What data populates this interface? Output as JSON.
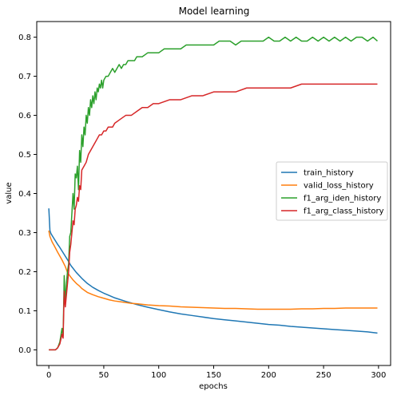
{
  "chart_data": {
    "type": "line",
    "title": "Model learning",
    "xlabel": "epochs",
    "ylabel": "value",
    "xlim": [
      -11,
      311
    ],
    "ylim": [
      -0.04,
      0.84
    ],
    "xticks": [
      0,
      50,
      100,
      150,
      200,
      250,
      300
    ],
    "yticks": [
      0.0,
      0.1,
      0.2,
      0.3,
      0.4,
      0.5,
      0.6,
      0.7,
      0.8
    ],
    "xtick_labels": [
      "0",
      "50",
      "100",
      "150",
      "200",
      "250",
      "300"
    ],
    "ytick_labels": [
      "0.0",
      "0.1",
      "0.2",
      "0.3",
      "0.4",
      "0.5",
      "0.6",
      "0.7",
      "0.8"
    ],
    "grid": false,
    "legend_position": "center-right",
    "series": [
      {
        "name": "train_history",
        "color": "#1f77b4",
        "x": [
          0,
          1,
          2,
          4,
          6,
          8,
          10,
          12,
          14,
          16,
          18,
          20,
          25,
          30,
          35,
          40,
          45,
          50,
          55,
          60,
          70,
          80,
          90,
          100,
          110,
          120,
          130,
          140,
          150,
          160,
          170,
          180,
          190,
          200,
          210,
          220,
          230,
          240,
          250,
          260,
          270,
          280,
          290,
          299
        ],
        "y": [
          0.362,
          0.305,
          0.297,
          0.288,
          0.279,
          0.27,
          0.262,
          0.253,
          0.244,
          0.235,
          0.226,
          0.216,
          0.198,
          0.183,
          0.17,
          0.16,
          0.152,
          0.145,
          0.139,
          0.133,
          0.124,
          0.116,
          0.109,
          0.103,
          0.097,
          0.092,
          0.088,
          0.084,
          0.08,
          0.077,
          0.074,
          0.071,
          0.068,
          0.065,
          0.063,
          0.06,
          0.058,
          0.056,
          0.054,
          0.052,
          0.05,
          0.048,
          0.046,
          0.043
        ]
      },
      {
        "name": "valid_loss_history",
        "color": "#ff7f0e",
        "x": [
          0,
          1,
          3,
          5,
          8,
          10,
          12,
          15,
          17,
          20,
          22,
          25,
          28,
          30,
          35,
          40,
          45,
          50,
          55,
          60,
          65,
          70,
          75,
          80,
          90,
          100,
          110,
          120,
          130,
          140,
          150,
          160,
          170,
          180,
          190,
          200,
          210,
          220,
          230,
          240,
          250,
          260,
          270,
          280,
          290,
          299
        ],
        "y": [
          0.305,
          0.29,
          0.276,
          0.266,
          0.25,
          0.24,
          0.23,
          0.213,
          0.198,
          0.186,
          0.179,
          0.17,
          0.163,
          0.157,
          0.147,
          0.141,
          0.136,
          0.132,
          0.128,
          0.125,
          0.123,
          0.121,
          0.119,
          0.118,
          0.115,
          0.113,
          0.112,
          0.11,
          0.109,
          0.108,
          0.107,
          0.106,
          0.106,
          0.105,
          0.104,
          0.104,
          0.104,
          0.104,
          0.105,
          0.105,
          0.106,
          0.106,
          0.107,
          0.107,
          0.107,
          0.107
        ]
      },
      {
        "name": "f1_arg_iden_history",
        "color": "#2ca02c",
        "x": [
          0,
          2,
          4,
          6,
          8,
          10,
          12,
          13,
          14,
          15,
          16,
          17,
          18,
          19,
          20,
          21,
          22,
          23,
          24,
          25,
          26,
          27,
          28,
          29,
          30,
          31,
          32,
          33,
          34,
          35,
          36,
          37,
          38,
          39,
          40,
          41,
          42,
          43,
          44,
          45,
          46,
          47,
          48,
          49,
          50,
          52,
          54,
          56,
          58,
          60,
          62,
          64,
          66,
          68,
          70,
          72,
          75,
          78,
          80,
          85,
          90,
          95,
          100,
          105,
          110,
          115,
          120,
          125,
          130,
          135,
          140,
          145,
          150,
          155,
          160,
          165,
          170,
          175,
          180,
          185,
          190,
          195,
          200,
          205,
          210,
          215,
          220,
          225,
          230,
          235,
          240,
          245,
          250,
          255,
          260,
          265,
          270,
          275,
          280,
          285,
          290,
          295,
          299
        ],
        "y": [
          0.0,
          0.0,
          0.0,
          0.0,
          0.005,
          0.02,
          0.055,
          0.035,
          0.19,
          0.12,
          0.17,
          0.2,
          0.22,
          0.29,
          0.3,
          0.35,
          0.4,
          0.36,
          0.45,
          0.44,
          0.47,
          0.41,
          0.51,
          0.48,
          0.55,
          0.52,
          0.57,
          0.55,
          0.6,
          0.58,
          0.62,
          0.6,
          0.64,
          0.62,
          0.65,
          0.63,
          0.66,
          0.64,
          0.67,
          0.66,
          0.68,
          0.67,
          0.69,
          0.67,
          0.69,
          0.7,
          0.7,
          0.71,
          0.72,
          0.71,
          0.72,
          0.73,
          0.72,
          0.73,
          0.73,
          0.74,
          0.74,
          0.74,
          0.75,
          0.75,
          0.76,
          0.76,
          0.76,
          0.77,
          0.77,
          0.77,
          0.77,
          0.78,
          0.78,
          0.78,
          0.78,
          0.78,
          0.78,
          0.79,
          0.79,
          0.79,
          0.78,
          0.79,
          0.79,
          0.79,
          0.79,
          0.79,
          0.8,
          0.79,
          0.79,
          0.8,
          0.79,
          0.8,
          0.79,
          0.79,
          0.8,
          0.79,
          0.8,
          0.79,
          0.8,
          0.79,
          0.8,
          0.79,
          0.8,
          0.8,
          0.79,
          0.8,
          0.79
        ]
      },
      {
        "name": "f1_arg_class_history",
        "color": "#d62728",
        "x": [
          0,
          2,
          4,
          6,
          8,
          10,
          12,
          13,
          14,
          15,
          16,
          17,
          18,
          19,
          20,
          21,
          22,
          23,
          24,
          25,
          26,
          27,
          28,
          29,
          30,
          32,
          34,
          36,
          38,
          40,
          42,
          44,
          46,
          48,
          50,
          52,
          54,
          56,
          58,
          60,
          65,
          70,
          75,
          80,
          85,
          90,
          95,
          100,
          110,
          120,
          130,
          140,
          150,
          160,
          170,
          180,
          190,
          200,
          210,
          220,
          230,
          240,
          250,
          260,
          270,
          280,
          290,
          295,
          299
        ],
        "y": [
          0.0,
          0.0,
          0.0,
          0.0,
          0.005,
          0.015,
          0.04,
          0.03,
          0.15,
          0.11,
          0.14,
          0.17,
          0.2,
          0.25,
          0.27,
          0.3,
          0.33,
          0.32,
          0.36,
          0.37,
          0.39,
          0.38,
          0.42,
          0.41,
          0.46,
          0.47,
          0.48,
          0.5,
          0.51,
          0.52,
          0.53,
          0.54,
          0.55,
          0.55,
          0.56,
          0.56,
          0.57,
          0.57,
          0.57,
          0.58,
          0.59,
          0.6,
          0.6,
          0.61,
          0.62,
          0.62,
          0.63,
          0.63,
          0.64,
          0.64,
          0.65,
          0.65,
          0.66,
          0.66,
          0.66,
          0.67,
          0.67,
          0.67,
          0.67,
          0.67,
          0.68,
          0.68,
          0.68,
          0.68,
          0.68,
          0.68,
          0.68,
          0.68,
          0.68
        ]
      }
    ]
  }
}
